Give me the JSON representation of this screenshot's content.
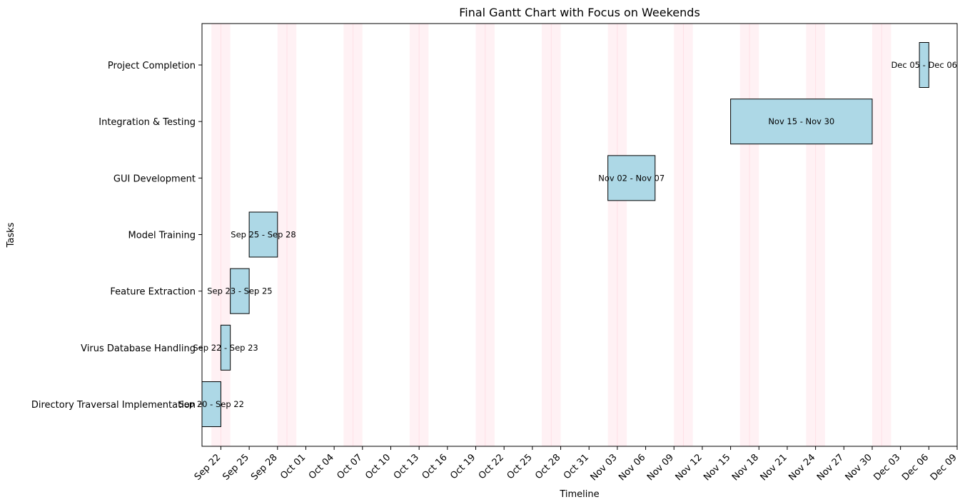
{
  "chart_data": {
    "type": "gantt",
    "title": "Final Gantt Chart with Focus on Weekends",
    "xlabel": "Timeline",
    "ylabel": "Tasks",
    "x_range": [
      "2023-09-20",
      "2023-12-09"
    ],
    "x_ticks": [
      "Sep 22",
      "Sep 25",
      "Sep 28",
      "Oct 01",
      "Oct 04",
      "Oct 07",
      "Oct 10",
      "Oct 13",
      "Oct 16",
      "Oct 19",
      "Oct 22",
      "Oct 25",
      "Oct 28",
      "Oct 31",
      "Nov 03",
      "Nov 06",
      "Nov 09",
      "Nov 12",
      "Nov 15",
      "Nov 18",
      "Nov 21",
      "Nov 24",
      "Nov 27",
      "Nov 30",
      "Dec 03",
      "Dec 06",
      "Dec 09"
    ],
    "tasks": [
      {
        "name": "Directory Traversal Implementation",
        "start": "2023-09-20",
        "end": "2023-09-22",
        "label": "Sep 20 - Sep 22",
        "color": "#add8e6"
      },
      {
        "name": "Virus Database Handling",
        "start": "2023-09-22",
        "end": "2023-09-23",
        "label": "Sep 22 - Sep 23",
        "color": "#add8e6"
      },
      {
        "name": "Feature Extraction",
        "start": "2023-09-23",
        "end": "2023-09-25",
        "label": "Sep 23 - Sep 25",
        "color": "#add8e6"
      },
      {
        "name": "Model Training",
        "start": "2023-09-25",
        "end": "2023-09-28",
        "label": "Sep 25 - Sep 28",
        "color": "#add8e6"
      },
      {
        "name": "GUI Development",
        "start": "2023-11-02",
        "end": "2023-11-07",
        "label": "Nov 02 - Nov 07",
        "color": "#add8e6"
      },
      {
        "name": "Integration & Testing",
        "start": "2023-11-15",
        "end": "2023-11-30",
        "label": "Nov 15 - Nov 30",
        "color": "#add8e6"
      },
      {
        "name": "Project Completion",
        "start": "2023-12-05",
        "end": "2023-12-06",
        "label": "Dec 05 - Dec 06",
        "color": "#add8e6"
      }
    ],
    "weekend_spans": [
      [
        "2023-09-21",
        "2023-09-23"
      ],
      [
        "2023-09-28",
        "2023-09-30"
      ],
      [
        "2023-10-05",
        "2023-10-07"
      ],
      [
        "2023-10-12",
        "2023-10-14"
      ],
      [
        "2023-10-19",
        "2023-10-21"
      ],
      [
        "2023-10-26",
        "2023-10-28"
      ],
      [
        "2023-11-02",
        "2023-11-04"
      ],
      [
        "2023-11-09",
        "2023-11-11"
      ],
      [
        "2023-11-16",
        "2023-11-18"
      ],
      [
        "2023-11-23",
        "2023-11-25"
      ],
      [
        "2023-11-30",
        "2023-12-02"
      ]
    ],
    "weekend_color": "#ffc0cb",
    "grid": false,
    "legend": "none"
  }
}
